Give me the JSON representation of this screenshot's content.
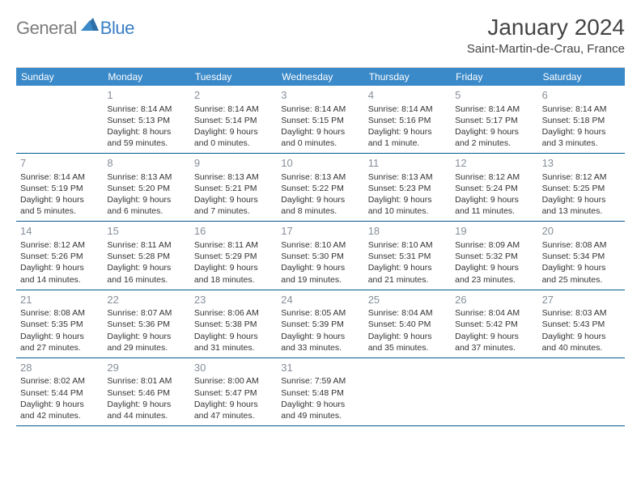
{
  "brand": {
    "general": "General",
    "blue": "Blue"
  },
  "title": {
    "month": "January 2024",
    "location": "Saint-Martin-de-Crau, France"
  },
  "weekdays": [
    "Sunday",
    "Monday",
    "Tuesday",
    "Wednesday",
    "Thursday",
    "Friday",
    "Saturday"
  ],
  "colors": {
    "header_bg": "#3a89c9",
    "header_text": "#ffffff",
    "border": "#045a8d",
    "daynum": "#878f99",
    "text": "#333333",
    "logo_gray": "#7c7c7c",
    "logo_blue": "#3a7fc4"
  },
  "start_offset": 1,
  "days": [
    {
      "n": "1",
      "sr": "8:14 AM",
      "ss": "5:13 PM",
      "dl": "8 hours and 59 minutes."
    },
    {
      "n": "2",
      "sr": "8:14 AM",
      "ss": "5:14 PM",
      "dl": "9 hours and 0 minutes."
    },
    {
      "n": "3",
      "sr": "8:14 AM",
      "ss": "5:15 PM",
      "dl": "9 hours and 0 minutes."
    },
    {
      "n": "4",
      "sr": "8:14 AM",
      "ss": "5:16 PM",
      "dl": "9 hours and 1 minute."
    },
    {
      "n": "5",
      "sr": "8:14 AM",
      "ss": "5:17 PM",
      "dl": "9 hours and 2 minutes."
    },
    {
      "n": "6",
      "sr": "8:14 AM",
      "ss": "5:18 PM",
      "dl": "9 hours and 3 minutes."
    },
    {
      "n": "7",
      "sr": "8:14 AM",
      "ss": "5:19 PM",
      "dl": "9 hours and 5 minutes."
    },
    {
      "n": "8",
      "sr": "8:13 AM",
      "ss": "5:20 PM",
      "dl": "9 hours and 6 minutes."
    },
    {
      "n": "9",
      "sr": "8:13 AM",
      "ss": "5:21 PM",
      "dl": "9 hours and 7 minutes."
    },
    {
      "n": "10",
      "sr": "8:13 AM",
      "ss": "5:22 PM",
      "dl": "9 hours and 8 minutes."
    },
    {
      "n": "11",
      "sr": "8:13 AM",
      "ss": "5:23 PM",
      "dl": "9 hours and 10 minutes."
    },
    {
      "n": "12",
      "sr": "8:12 AM",
      "ss": "5:24 PM",
      "dl": "9 hours and 11 minutes."
    },
    {
      "n": "13",
      "sr": "8:12 AM",
      "ss": "5:25 PM",
      "dl": "9 hours and 13 minutes."
    },
    {
      "n": "14",
      "sr": "8:12 AM",
      "ss": "5:26 PM",
      "dl": "9 hours and 14 minutes."
    },
    {
      "n": "15",
      "sr": "8:11 AM",
      "ss": "5:28 PM",
      "dl": "9 hours and 16 minutes."
    },
    {
      "n": "16",
      "sr": "8:11 AM",
      "ss": "5:29 PM",
      "dl": "9 hours and 18 minutes."
    },
    {
      "n": "17",
      "sr": "8:10 AM",
      "ss": "5:30 PM",
      "dl": "9 hours and 19 minutes."
    },
    {
      "n": "18",
      "sr": "8:10 AM",
      "ss": "5:31 PM",
      "dl": "9 hours and 21 minutes."
    },
    {
      "n": "19",
      "sr": "8:09 AM",
      "ss": "5:32 PM",
      "dl": "9 hours and 23 minutes."
    },
    {
      "n": "20",
      "sr": "8:08 AM",
      "ss": "5:34 PM",
      "dl": "9 hours and 25 minutes."
    },
    {
      "n": "21",
      "sr": "8:08 AM",
      "ss": "5:35 PM",
      "dl": "9 hours and 27 minutes."
    },
    {
      "n": "22",
      "sr": "8:07 AM",
      "ss": "5:36 PM",
      "dl": "9 hours and 29 minutes."
    },
    {
      "n": "23",
      "sr": "8:06 AM",
      "ss": "5:38 PM",
      "dl": "9 hours and 31 minutes."
    },
    {
      "n": "24",
      "sr": "8:05 AM",
      "ss": "5:39 PM",
      "dl": "9 hours and 33 minutes."
    },
    {
      "n": "25",
      "sr": "8:04 AM",
      "ss": "5:40 PM",
      "dl": "9 hours and 35 minutes."
    },
    {
      "n": "26",
      "sr": "8:04 AM",
      "ss": "5:42 PM",
      "dl": "9 hours and 37 minutes."
    },
    {
      "n": "27",
      "sr": "8:03 AM",
      "ss": "5:43 PM",
      "dl": "9 hours and 40 minutes."
    },
    {
      "n": "28",
      "sr": "8:02 AM",
      "ss": "5:44 PM",
      "dl": "9 hours and 42 minutes."
    },
    {
      "n": "29",
      "sr": "8:01 AM",
      "ss": "5:46 PM",
      "dl": "9 hours and 44 minutes."
    },
    {
      "n": "30",
      "sr": "8:00 AM",
      "ss": "5:47 PM",
      "dl": "9 hours and 47 minutes."
    },
    {
      "n": "31",
      "sr": "7:59 AM",
      "ss": "5:48 PM",
      "dl": "9 hours and 49 minutes."
    }
  ],
  "labels": {
    "sunrise": "Sunrise: ",
    "sunset": "Sunset: ",
    "daylight": "Daylight: "
  }
}
